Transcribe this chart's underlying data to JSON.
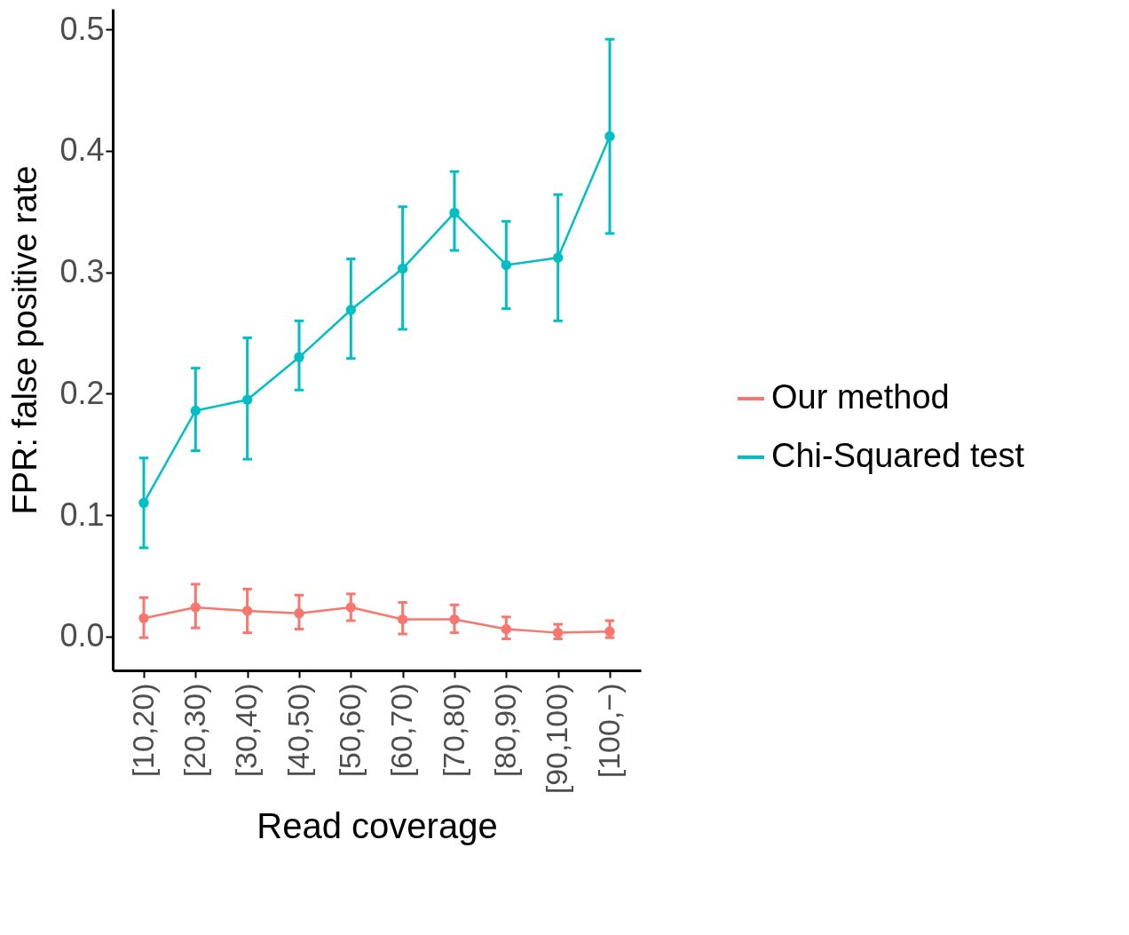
{
  "chart_data": {
    "type": "line",
    "xlabel": "Read coverage",
    "ylabel": "FPR: false positive rate",
    "categories": [
      "[10,20)",
      "[20,30)",
      "[30,40)",
      "[40,50)",
      "[50,60)",
      "[60,70)",
      "[70,80)",
      "[80,90)",
      "[90,100)",
      "[100,−)"
    ],
    "series": [
      {
        "name": "Our method",
        "color": "#f8766d",
        "values": [
          0.015,
          0.024,
          0.021,
          0.019,
          0.024,
          0.014,
          0.014,
          0.006,
          0.003,
          0.004
        ],
        "errors": [
          [
            -0.001,
            0.032
          ],
          [
            0.007,
            0.043
          ],
          [
            0.003,
            0.039
          ],
          [
            0.006,
            0.034
          ],
          [
            0.013,
            0.035
          ],
          [
            0.002,
            0.028
          ],
          [
            0.003,
            0.026
          ],
          [
            -0.002,
            0.016
          ],
          [
            -0.002,
            0.01
          ],
          [
            -0.001,
            0.013
          ]
        ]
      },
      {
        "name": "Chi-Squared test",
        "color": "#00bfc4",
        "values": [
          0.11,
          0.186,
          0.195,
          0.23,
          0.269,
          0.303,
          0.349,
          0.306,
          0.312,
          0.412
        ],
        "errors": [
          [
            0.073,
            0.147
          ],
          [
            0.153,
            0.221
          ],
          [
            0.146,
            0.246
          ],
          [
            0.203,
            0.26
          ],
          [
            0.229,
            0.311
          ],
          [
            0.253,
            0.354
          ],
          [
            0.318,
            0.383
          ],
          [
            0.27,
            0.342
          ],
          [
            0.26,
            0.364
          ],
          [
            0.332,
            0.492
          ]
        ]
      }
    ],
    "ylim": [
      -0.028,
      0.517
    ],
    "yticks": [
      {
        "value": 0,
        "label": "0.0"
      },
      0.1,
      0.2,
      0.3,
      0.4,
      0.5
    ],
    "grid": false,
    "legend": "right",
    "marker": "circle",
    "line_style": "solid"
  }
}
